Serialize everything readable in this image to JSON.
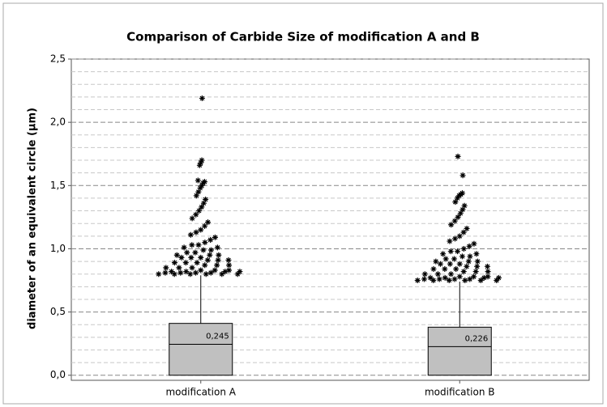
{
  "chart_data": {
    "type": "box",
    "title": "Comparison of Carbide Size of modification A and B",
    "y_label": "diameter of an equivalent circle (µm)",
    "categories": [
      "modification A",
      "modification B"
    ],
    "box_color": "#c0c0c0",
    "ylim": [
      -0.04,
      2.5
    ],
    "yticks": [
      {
        "value": 0,
        "label": "0,0"
      },
      {
        "value": 0.5,
        "label": "0,5"
      },
      {
        "value": 1,
        "label": "1,0"
      },
      {
        "value": 1.5,
        "label": "1,5"
      },
      {
        "value": 2,
        "label": "2,0"
      },
      {
        "value": 2.5,
        "label": "2,5"
      }
    ],
    "minor_yticks": [
      0.1,
      0.2,
      0.3,
      0.4,
      0.6,
      0.7,
      0.8,
      0.9,
      1.1,
      1.2,
      1.3,
      1.4,
      1.6,
      1.7,
      1.8,
      1.9,
      2.1,
      2.2,
      2.3,
      2.4
    ],
    "grid": true,
    "boxes": [
      {
        "whisker_low": 0,
        "q1": 0,
        "median": 0.245,
        "median_label": "0,245",
        "q3": 0.41,
        "whisker_high": 0.79,
        "outliers": [
          0.8,
          0.8,
          0.8,
          0.8,
          0.8,
          0.8,
          0.81,
          0.81,
          0.81,
          0.81,
          0.82,
          0.82,
          0.82,
          0.82,
          0.83,
          0.83,
          0.83,
          0.85,
          0.85,
          0.85,
          0.87,
          0.87,
          0.87,
          0.89,
          0.89,
          0.89,
          0.91,
          0.91,
          0.91,
          0.93,
          0.93,
          0.93,
          0.95,
          0.95,
          0.95,
          0.97,
          0.97,
          0.99,
          0.99,
          1.01,
          1.01,
          1.03,
          1.03,
          1.05,
          1.07,
          1.09,
          1.11,
          1.13,
          1.15,
          1.18,
          1.21,
          1.24,
          1.27,
          1.3,
          1.33,
          1.36,
          1.39,
          1.42,
          1.45,
          1.48,
          1.5,
          1.52,
          1.53,
          1.54,
          1.66,
          1.68,
          1.7,
          2.19
        ]
      },
      {
        "whisker_low": 0,
        "q1": 0,
        "median": 0.226,
        "median_label": "0,226",
        "q3": 0.38,
        "whisker_high": 0.74,
        "outliers": [
          0.75,
          0.75,
          0.75,
          0.75,
          0.75,
          0.75,
          0.76,
          0.76,
          0.76,
          0.76,
          0.77,
          0.77,
          0.77,
          0.77,
          0.78,
          0.78,
          0.78,
          0.8,
          0.8,
          0.8,
          0.82,
          0.82,
          0.82,
          0.84,
          0.84,
          0.84,
          0.86,
          0.86,
          0.86,
          0.88,
          0.88,
          0.88,
          0.9,
          0.9,
          0.9,
          0.92,
          0.92,
          0.94,
          0.94,
          0.96,
          0.96,
          0.98,
          0.98,
          1,
          1.02,
          1.04,
          1.06,
          1.08,
          1.1,
          1.13,
          1.16,
          1.19,
          1.22,
          1.25,
          1.28,
          1.31,
          1.34,
          1.37,
          1.4,
          1.42,
          1.43,
          1.44,
          1.58,
          1.73
        ]
      }
    ]
  }
}
